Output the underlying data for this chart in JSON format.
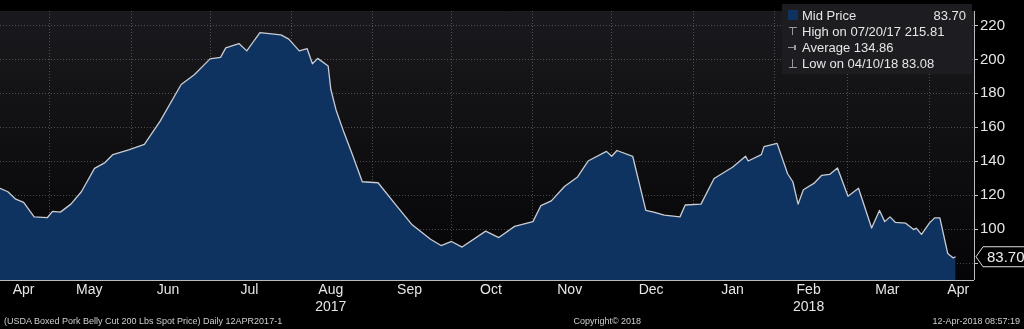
{
  "chart_data": {
    "type": "area",
    "x": [
      "2017-04-12",
      "2017-04-15",
      "2017-04-18",
      "2017-04-21",
      "2017-04-25",
      "2017-04-30",
      "2017-05-02",
      "2017-05-05",
      "2017-05-09",
      "2017-05-13",
      "2017-05-18",
      "2017-05-22",
      "2017-05-25",
      "2017-05-31",
      "2017-06-06",
      "2017-06-12",
      "2017-06-20",
      "2017-06-25",
      "2017-07-01",
      "2017-07-05",
      "2017-07-07",
      "2017-07-12",
      "2017-07-15",
      "2017-07-20",
      "2017-07-28",
      "2017-07-31",
      "2017-08-04",
      "2017-08-07",
      "2017-08-09",
      "2017-08-11",
      "2017-08-15",
      "2017-08-16",
      "2017-08-18",
      "2017-08-21",
      "2017-08-24",
      "2017-08-28",
      "2017-09-03",
      "2017-09-10",
      "2017-09-16",
      "2017-09-23",
      "2017-09-27",
      "2017-10-01",
      "2017-10-05",
      "2017-10-14",
      "2017-10-19",
      "2017-10-25",
      "2017-11-01",
      "2017-11-04",
      "2017-11-08",
      "2017-11-13",
      "2017-11-18",
      "2017-11-22",
      "2017-11-29",
      "2017-12-01",
      "2017-12-03",
      "2017-12-09",
      "2017-12-14",
      "2017-12-17",
      "2017-12-21",
      "2017-12-27",
      "2017-12-29",
      "2018-01-04",
      "2018-01-09",
      "2018-01-16",
      "2018-01-21",
      "2018-01-22",
      "2018-01-27",
      "2018-01-28",
      "2018-02-02",
      "2018-02-06",
      "2018-02-08",
      "2018-02-10",
      "2018-02-12",
      "2018-02-16",
      "2018-02-19",
      "2018-02-22",
      "2018-02-25",
      "2018-03-01",
      "2018-03-05",
      "2018-03-10",
      "2018-03-13",
      "2018-03-15",
      "2018-03-17",
      "2018-03-19",
      "2018-03-23",
      "2018-03-26",
      "2018-03-27",
      "2018-03-29",
      "2018-04-01",
      "2018-04-03",
      "2018-04-05",
      "2018-04-08",
      "2018-04-10",
      "2018-04-11"
    ],
    "series": [
      {
        "name": "Mid Price",
        "color": "#0f3360",
        "values": [
          124,
          122,
          117.6,
          115.7,
          107.2,
          106.7,
          110.4,
          110,
          114.7,
          122,
          135.8,
          139.2,
          143.9,
          146.7,
          149.9,
          163.6,
          185.2,
          190.9,
          200.3,
          201.2,
          206.8,
          209.3,
          205,
          215.81,
          214.4,
          211.9,
          205,
          206.3,
          197.4,
          200.6,
          196.1,
          182.4,
          170.2,
          157,
          144.8,
          127.9,
          127.3,
          113.8,
          102.5,
          94,
          90.3,
          92.7,
          89.4,
          98.8,
          95,
          101.6,
          104.4,
          113.8,
          116.6,
          125.1,
          130.7,
          140.1,
          145.8,
          142.9,
          146.3,
          142.9,
          111,
          110,
          108.2,
          107.2,
          114.2,
          114.7,
          129.8,
          136.4,
          142.9,
          140.1,
          143.9,
          148.6,
          150.5,
          132.6,
          127.9,
          114.7,
          123.2,
          126.9,
          131.7,
          132.2,
          136,
          119.4,
          124.1,
          100.6,
          111,
          104.4,
          107.2,
          104,
          103.5,
          99.7,
          100.6,
          96.9,
          103.5,
          106.6,
          106.6,
          85.6,
          83.08,
          83.7
        ]
      }
    ],
    "xlim": [
      "2017-04-12",
      "2018-04-18"
    ],
    "xticks": [
      {
        "value": "2017-04-21",
        "label": "Apr"
      },
      {
        "value": "2017-05-01",
        "label": null
      },
      {
        "value": "2017-05-16",
        "label": "May"
      },
      {
        "value": "2017-06-01",
        "label": null
      },
      {
        "value": "2017-06-15",
        "label": "Jun"
      },
      {
        "value": "2017-07-01",
        "label": null
      },
      {
        "value": "2017-07-16",
        "label": "Jul"
      },
      {
        "value": "2017-08-01",
        "label": null
      },
      {
        "value": "2017-08-16",
        "label": "Aug\n2017"
      },
      {
        "value": "2017-09-01",
        "label": null
      },
      {
        "value": "2017-09-15",
        "label": "Sep"
      },
      {
        "value": "2017-10-01",
        "label": null
      },
      {
        "value": "2017-10-16",
        "label": "Oct"
      },
      {
        "value": "2017-11-01",
        "label": null
      },
      {
        "value": "2017-11-15",
        "label": "Nov"
      },
      {
        "value": "2017-12-01",
        "label": null
      },
      {
        "value": "2017-12-16",
        "label": "Dec"
      },
      {
        "value": "2018-01-01",
        "label": null
      },
      {
        "value": "2018-01-16",
        "label": "Jan"
      },
      {
        "value": "2018-02-01",
        "label": null
      },
      {
        "value": "2018-02-14",
        "label": "Feb\n2018"
      },
      {
        "value": "2018-03-01",
        "label": null
      },
      {
        "value": "2018-03-16",
        "label": "Mar"
      },
      {
        "value": "2018-04-01",
        "label": null
      },
      {
        "value": "2018-04-12",
        "label": "Apr"
      }
    ],
    "ylim": [
      70,
      228.5
    ],
    "yticks": [
      {
        "value": 80,
        "label": null
      },
      100,
      120,
      140,
      160,
      180,
      200,
      220
    ],
    "grid": true,
    "legend": "top right",
    "annotations": [
      {
        "text": "83.70",
        "x": "2018-04-11",
        "y": 83.7
      },
      "High on 07/20/17 215.81",
      "Average 134.86",
      "Low on 04/10/18 83.08",
      "(USDA Boxed Pork Belly Cut 200 Lbs Spot Price)  Daily 12APR2017-1",
      "Copyright© 2018",
      "12-Apr-2018 08:57:19"
    ]
  }
}
